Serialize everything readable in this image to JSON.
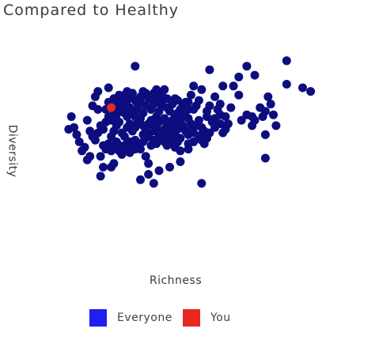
{
  "chart_data": {
    "type": "scatter",
    "title": "Compared to Healthy",
    "xlabel": "Richness",
    "ylabel": "Diversity",
    "xlim": [
      0,
      100
    ],
    "ylim": [
      0,
      100
    ],
    "grid": false,
    "legend_position": "bottom",
    "series": [
      {
        "name": "Everyone",
        "color": "#0d0d80",
        "points": [
          [
            30,
            94
          ],
          [
            58,
            92
          ],
          [
            69,
            88
          ],
          [
            72,
            94
          ],
          [
            87,
            97
          ],
          [
            75,
            89
          ],
          [
            87,
            84
          ],
          [
            69,
            78
          ],
          [
            67,
            83
          ],
          [
            63,
            83
          ],
          [
            80,
            77
          ],
          [
            81,
            73
          ],
          [
            82,
            67
          ],
          [
            93,
            82
          ],
          [
            96,
            80
          ],
          [
            83,
            61
          ],
          [
            79,
            56
          ],
          [
            79,
            43
          ],
          [
            50,
            70
          ],
          [
            45,
            76
          ],
          [
            33,
            80
          ],
          [
            42,
            76
          ],
          [
            41,
            81
          ],
          [
            52,
            83
          ],
          [
            55,
            81
          ],
          [
            51,
            78
          ],
          [
            54,
            75
          ],
          [
            60,
            77
          ],
          [
            58,
            72
          ],
          [
            62,
            67
          ],
          [
            63,
            57
          ],
          [
            64,
            59
          ],
          [
            57,
            66
          ],
          [
            51,
            62
          ],
          [
            45,
            56
          ],
          [
            47,
            54
          ],
          [
            50,
            48
          ],
          [
            47,
            41
          ],
          [
            43,
            38
          ],
          [
            39,
            36
          ],
          [
            37,
            29
          ],
          [
            35,
            34
          ],
          [
            32,
            31
          ],
          [
            34,
            44
          ],
          [
            30,
            48
          ],
          [
            33,
            56
          ],
          [
            27,
            66
          ],
          [
            26,
            68
          ],
          [
            24,
            78
          ],
          [
            20,
            82
          ],
          [
            16,
            80
          ],
          [
            15,
            77
          ],
          [
            14,
            72
          ],
          [
            16,
            70
          ],
          [
            12,
            64
          ],
          [
            6,
            66
          ],
          [
            5,
            59
          ],
          [
            7,
            60
          ],
          [
            8,
            56
          ],
          [
            9,
            52
          ],
          [
            10,
            47
          ],
          [
            11,
            49
          ],
          [
            12,
            42
          ],
          [
            13,
            44
          ],
          [
            17,
            44
          ],
          [
            18,
            38
          ],
          [
            17,
            33
          ],
          [
            21,
            38
          ],
          [
            22,
            40
          ],
          [
            24,
            47
          ],
          [
            26,
            50
          ],
          [
            28,
            52
          ],
          [
            35,
            40
          ],
          [
            35,
            56
          ],
          [
            36,
            62
          ],
          [
            38,
            66
          ],
          [
            39,
            69
          ],
          [
            40,
            72
          ],
          [
            41,
            65
          ],
          [
            42,
            62
          ],
          [
            43,
            60
          ],
          [
            44,
            64
          ],
          [
            45,
            66
          ],
          [
            46,
            68
          ],
          [
            48,
            72
          ],
          [
            48,
            66
          ],
          [
            49,
            69
          ],
          [
            50,
            74
          ],
          [
            52,
            70
          ],
          [
            53,
            72
          ],
          [
            54,
            64
          ],
          [
            55,
            60
          ],
          [
            56,
            58
          ],
          [
            57,
            69
          ],
          [
            59,
            63
          ],
          [
            60,
            65
          ],
          [
            61,
            70
          ],
          [
            62,
            73
          ],
          [
            64,
            66
          ],
          [
            65,
            62
          ],
          [
            66,
            71
          ],
          [
            70,
            64
          ],
          [
            72,
            67
          ],
          [
            74,
            66
          ],
          [
            74,
            61
          ],
          [
            75,
            64
          ],
          [
            77,
            71
          ],
          [
            78,
            66
          ],
          [
            79,
            69
          ],
          [
            21,
            55
          ],
          [
            22,
            58
          ],
          [
            23,
            61
          ],
          [
            24,
            63
          ],
          [
            25,
            57
          ],
          [
            26,
            55
          ],
          [
            27,
            60
          ],
          [
            28,
            62
          ],
          [
            29,
            58
          ],
          [
            30,
            60
          ],
          [
            31,
            63
          ],
          [
            32,
            65
          ],
          [
            33,
            61
          ],
          [
            34,
            59
          ],
          [
            35,
            62
          ],
          [
            36,
            64
          ],
          [
            37,
            58
          ],
          [
            38,
            60
          ],
          [
            39,
            63
          ],
          [
            40,
            57
          ],
          [
            41,
            59
          ],
          [
            42,
            55
          ],
          [
            43,
            53
          ],
          [
            44,
            57
          ],
          [
            45,
            61
          ],
          [
            46,
            59
          ],
          [
            47,
            63
          ],
          [
            48,
            61
          ],
          [
            49,
            58
          ],
          [
            50,
            56
          ],
          [
            51,
            59
          ],
          [
            52,
            57
          ],
          [
            53,
            61
          ],
          [
            54,
            55
          ],
          [
            55,
            53
          ],
          [
            56,
            51
          ],
          [
            13,
            58
          ],
          [
            14,
            55
          ],
          [
            15,
            53
          ],
          [
            16,
            57
          ],
          [
            17,
            61
          ],
          [
            18,
            59
          ],
          [
            19,
            63
          ],
          [
            20,
            66
          ],
          [
            21,
            64
          ],
          [
            22,
            69
          ],
          [
            23,
            67
          ],
          [
            24,
            72
          ],
          [
            25,
            70
          ],
          [
            26,
            73
          ],
          [
            27,
            75
          ],
          [
            28,
            71
          ],
          [
            29,
            68
          ],
          [
            30,
            66
          ],
          [
            31,
            70
          ],
          [
            32,
            74
          ],
          [
            33,
            68
          ],
          [
            34,
            72
          ],
          [
            35,
            76
          ],
          [
            36,
            70
          ],
          [
            37,
            73
          ],
          [
            38,
            75
          ],
          [
            39,
            78
          ],
          [
            40,
            74
          ],
          [
            41,
            76
          ],
          [
            42,
            71
          ],
          [
            43,
            69
          ],
          [
            44,
            73
          ],
          [
            46,
            75
          ],
          [
            47,
            70
          ],
          [
            49,
            74
          ],
          [
            50,
            65
          ],
          [
            18,
            50
          ],
          [
            19,
            48
          ],
          [
            20,
            51
          ],
          [
            21,
            47
          ],
          [
            22,
            49
          ],
          [
            23,
            52
          ],
          [
            24,
            50
          ],
          [
            25,
            45
          ],
          [
            26,
            48
          ],
          [
            27,
            51
          ],
          [
            28,
            46
          ],
          [
            29,
            49
          ],
          [
            30,
            53
          ],
          [
            31,
            51
          ],
          [
            32,
            48
          ],
          [
            33,
            52
          ],
          [
            34,
            54
          ],
          [
            36,
            50
          ],
          [
            37,
            53
          ],
          [
            38,
            51
          ],
          [
            39,
            55
          ],
          [
            40,
            53
          ],
          [
            41,
            52
          ],
          [
            42,
            50
          ],
          [
            44,
            51
          ],
          [
            45,
            49
          ],
          [
            46,
            52
          ],
          [
            47,
            47
          ],
          [
            50,
            51
          ],
          [
            52,
            52
          ],
          [
            55,
            56
          ],
          [
            57,
            54
          ],
          [
            58,
            57
          ],
          [
            60,
            60
          ],
          [
            62,
            62
          ],
          [
            64,
            61
          ],
          [
            19,
            70
          ],
          [
            20,
            74
          ],
          [
            21,
            72
          ],
          [
            22,
            76
          ],
          [
            23,
            74
          ],
          [
            25,
            76
          ],
          [
            26,
            78
          ],
          [
            27,
            80
          ],
          [
            28,
            77
          ],
          [
            29,
            79
          ],
          [
            30,
            75
          ],
          [
            31,
            73
          ],
          [
            32,
            77
          ],
          [
            34,
            79
          ],
          [
            36,
            77
          ],
          [
            37,
            79
          ],
          [
            38,
            81
          ],
          [
            40,
            79
          ],
          [
            55,
            29
          ]
        ]
      },
      {
        "name": "You",
        "color": "#e8281e",
        "points": [
          [
            21,
            71
          ]
        ]
      }
    ]
  },
  "legend": {
    "items": [
      {
        "label": "Everyone",
        "color": "#1f1ff0"
      },
      {
        "label": "You",
        "color": "#e8281e"
      }
    ]
  }
}
